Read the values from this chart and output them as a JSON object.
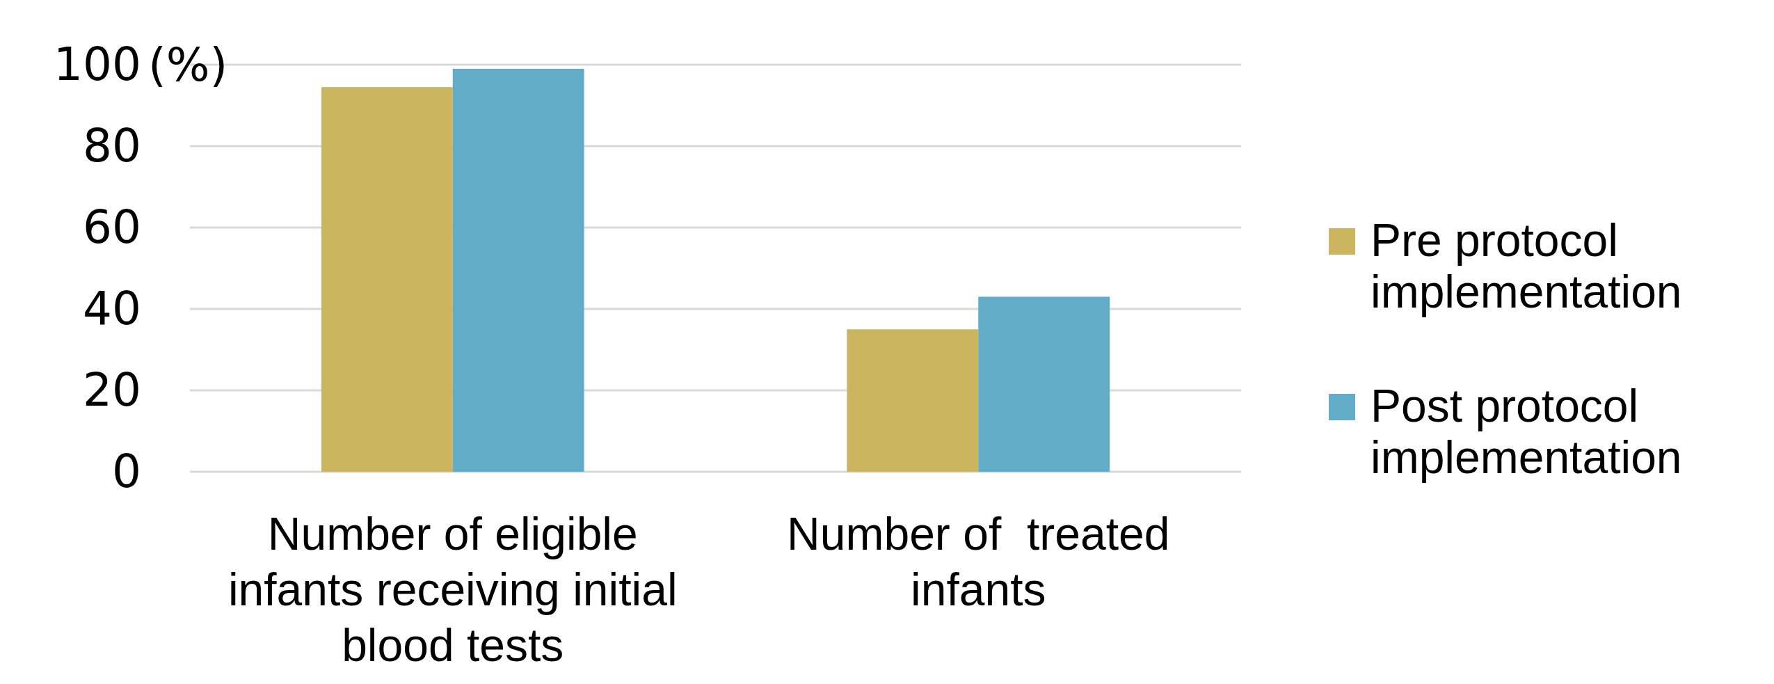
{
  "chart_data": {
    "type": "bar",
    "ylabel": "(%)",
    "categories": [
      "Number of eligible infants receiving initial blood tests",
      "Number of  treated infants"
    ],
    "series": [
      {
        "name": "Pre protocol implementation",
        "color": "#cbb55e",
        "values": [
          94.5,
          35
        ]
      },
      {
        "name": "Post protocol implementation",
        "color": "#63acc7",
        "values": [
          99,
          43
        ]
      }
    ],
    "ylim": [
      0,
      100
    ],
    "yticks": [
      0,
      20,
      40,
      60,
      80,
      100
    ],
    "grid": "y",
    "legend": "right"
  }
}
